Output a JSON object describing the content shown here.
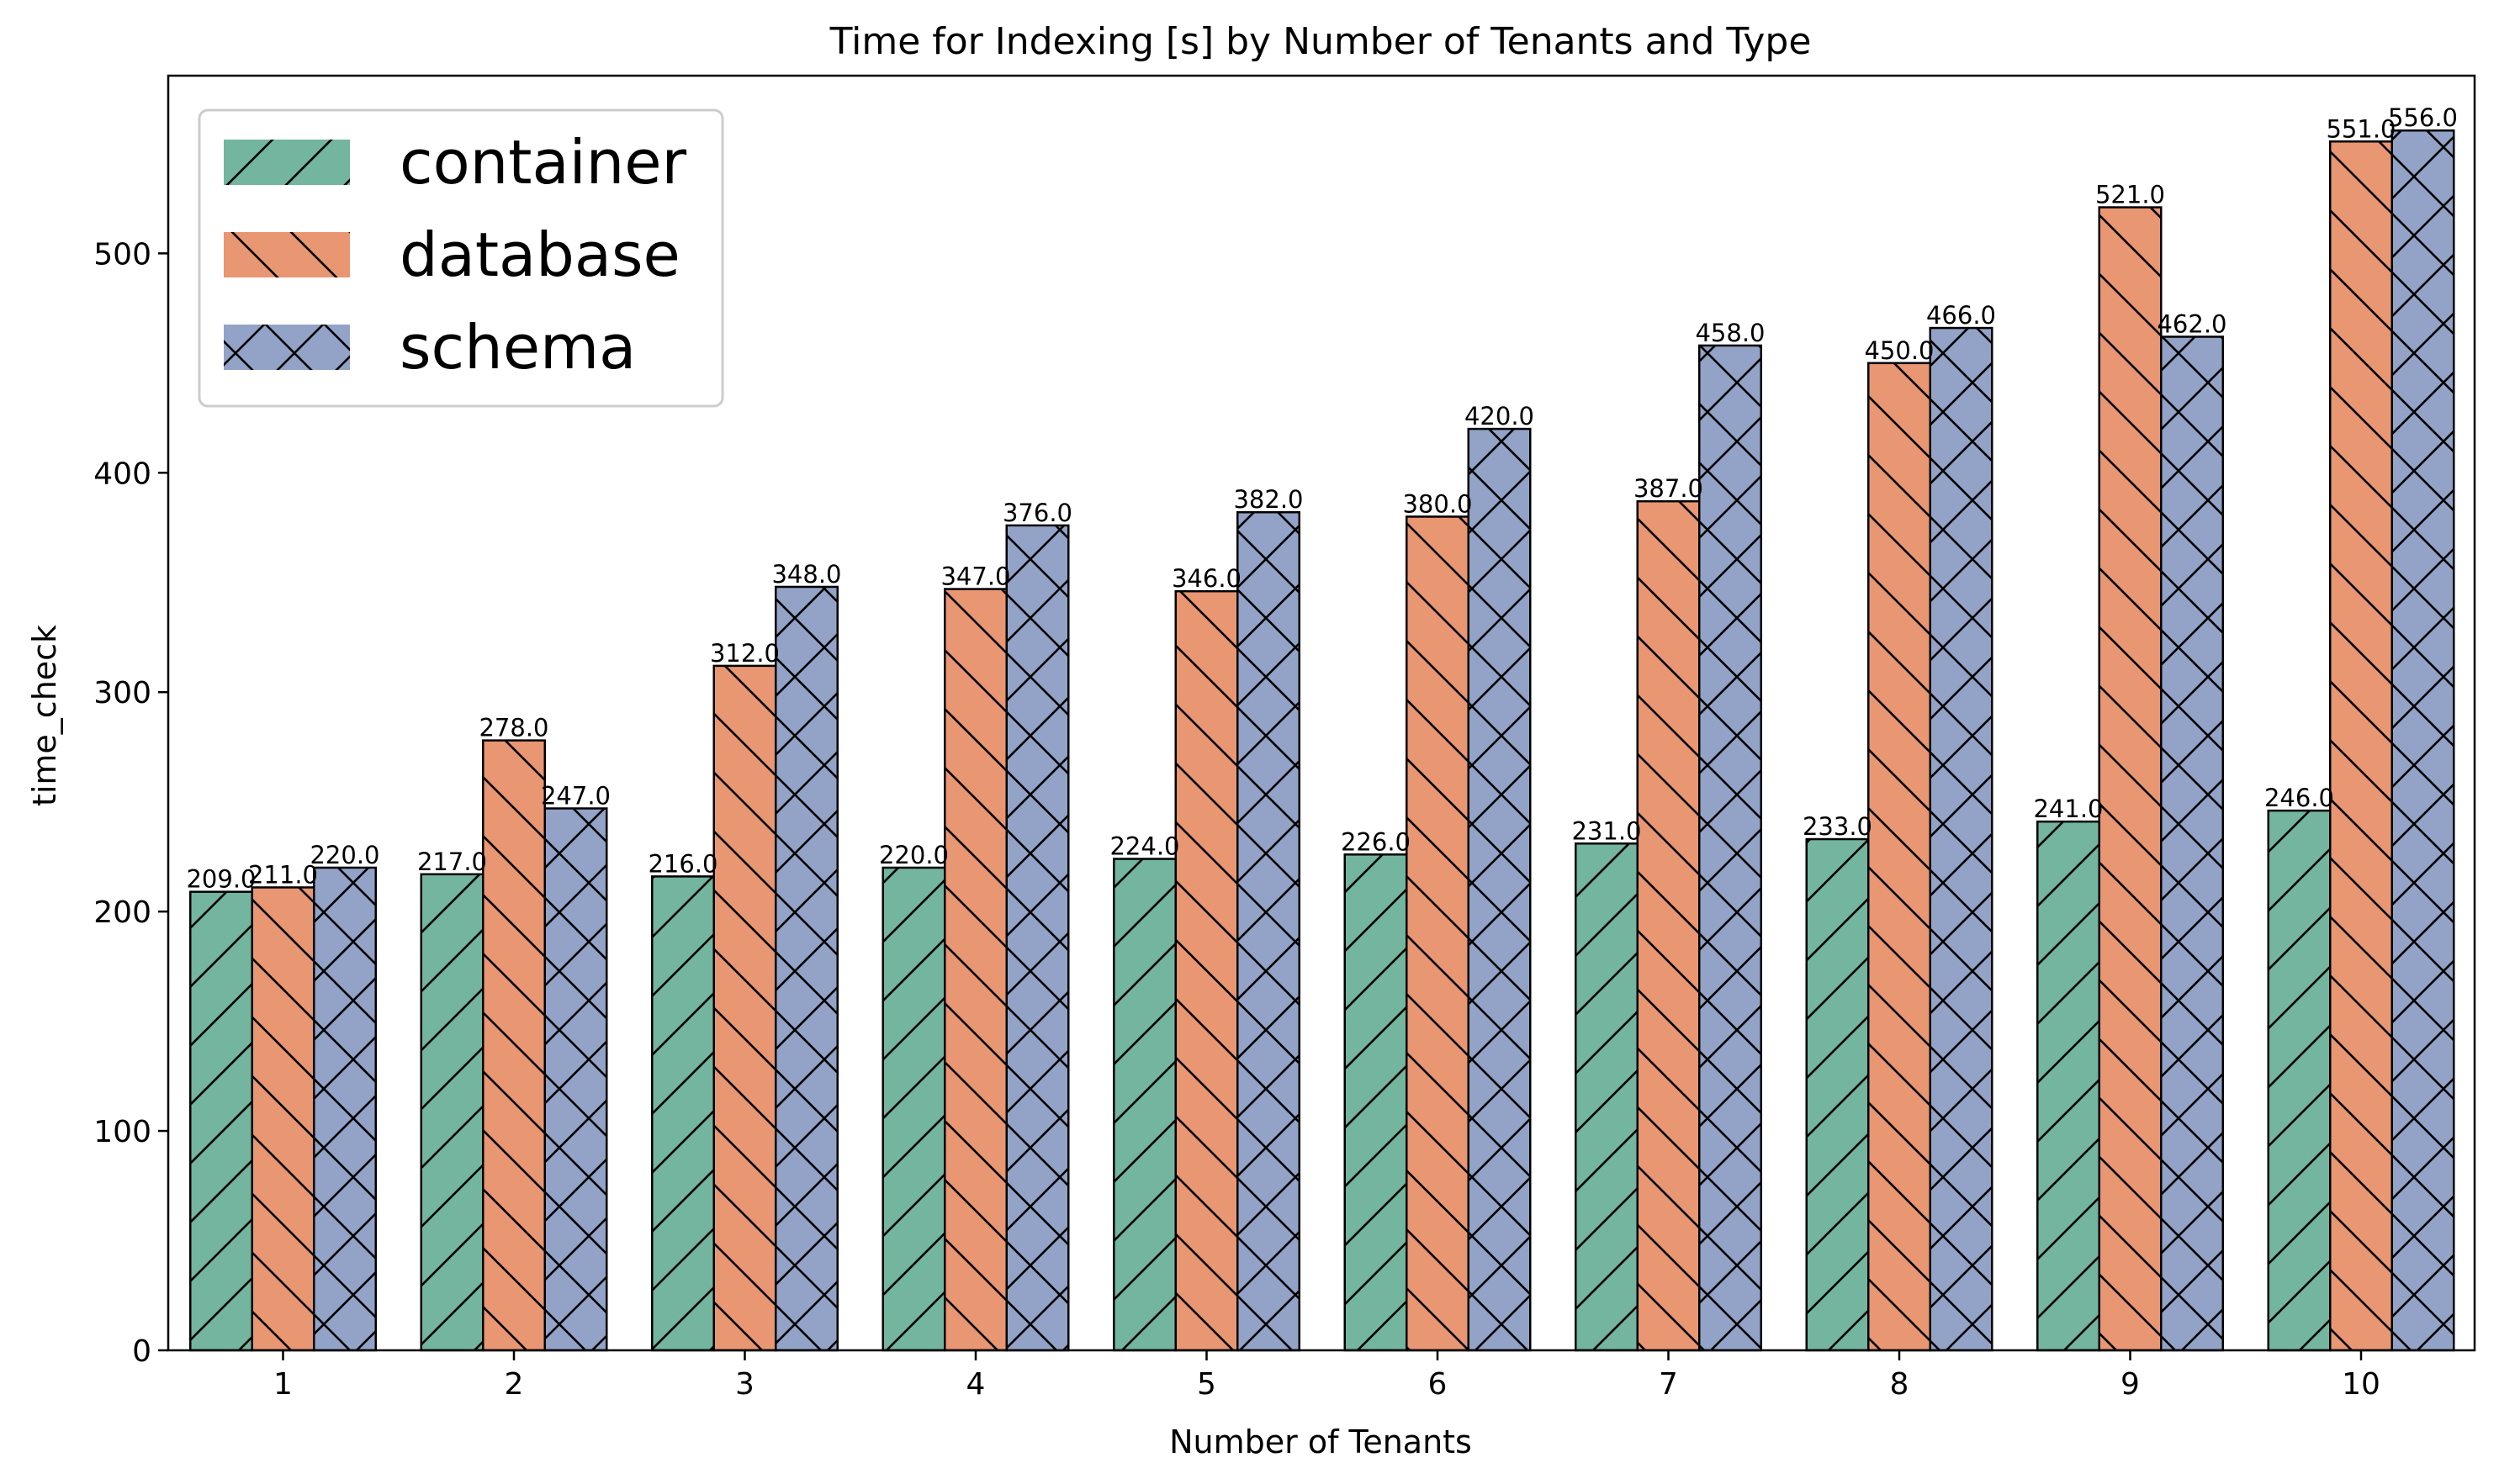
{
  "chart_data": {
    "type": "bar",
    "title": "Time for Indexing [s] by Number of Tenants and Type",
    "xlabel": "Number of Tenants",
    "ylabel": "time_check",
    "categories": [
      "1",
      "2",
      "3",
      "4",
      "5",
      "6",
      "7",
      "8",
      "9",
      "10"
    ],
    "series": [
      {
        "name": "container",
        "color": "#73b59e",
        "hatch": "forward-diagonal",
        "values": [
          209.0,
          217.0,
          216.0,
          220.0,
          224.0,
          226.0,
          231.0,
          233.0,
          241.0,
          246.0
        ],
        "labels": [
          "209.0",
          "217.0",
          "216.0",
          "220.0",
          "224.0",
          "226.0",
          "231.0",
          "233.0",
          "241.0",
          "246.0"
        ]
      },
      {
        "name": "database",
        "color": "#e99673",
        "hatch": "back-diagonal",
        "values": [
          211.0,
          278.0,
          312.0,
          347.0,
          346.0,
          380.0,
          387.0,
          450.0,
          521.0,
          551.0
        ],
        "labels": [
          "211.0",
          "278.0",
          "312.0",
          "347.0",
          "346.0",
          "380.0",
          "387.0",
          "450.0",
          "521.0",
          "551.0"
        ]
      },
      {
        "name": "schema",
        "color": "#93a3c7",
        "hatch": "cross",
        "values": [
          220.0,
          247.0,
          348.0,
          376.0,
          382.0,
          420.0,
          458.0,
          466.0,
          462.0,
          556.0
        ],
        "labels": [
          "220.0",
          "247.0",
          "348.0",
          "376.0",
          "382.0",
          "420.0",
          "458.0",
          "466.0",
          "462.0",
          "556.0"
        ]
      }
    ],
    "ylim": [
      0,
      581
    ],
    "yticks": [
      0,
      100,
      200,
      300,
      400,
      500
    ],
    "ytick_labels": [
      "0",
      "100",
      "200",
      "300",
      "400",
      "500"
    ],
    "grid": false,
    "legend_position": "top-left"
  }
}
